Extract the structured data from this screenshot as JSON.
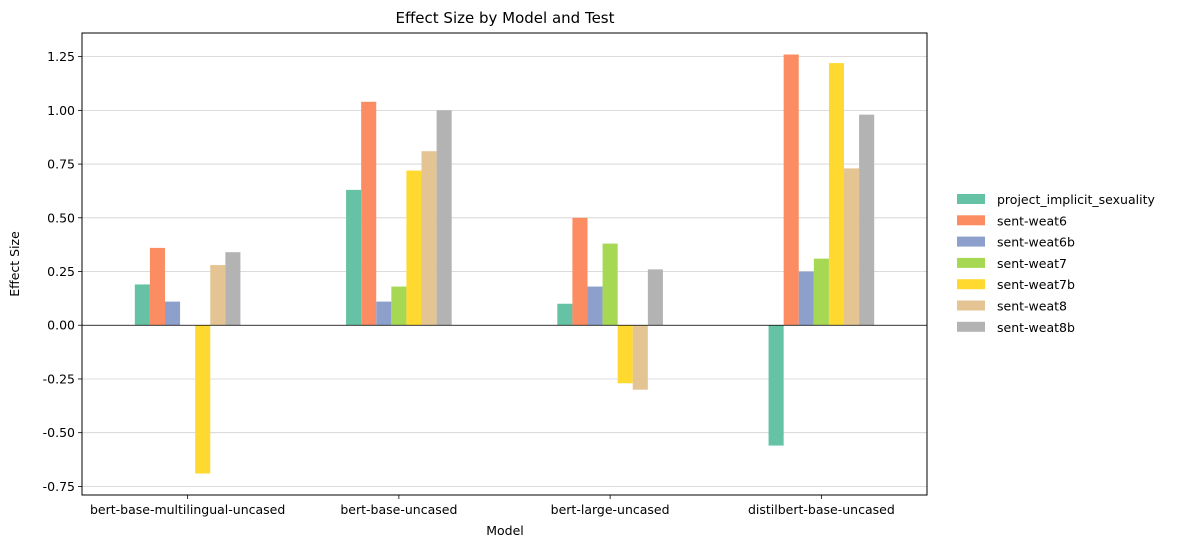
{
  "chart_data": {
    "type": "bar",
    "title": "Effect Size by Model and Test",
    "xlabel": "Model",
    "ylabel": "Effect Size",
    "ylim": [
      -0.79,
      1.36
    ],
    "yticks": [
      "-0.75",
      "-0.50",
      "-0.25",
      "0.00",
      "0.25",
      "0.50",
      "0.75",
      "1.00",
      "1.25"
    ],
    "grid": "horizontal",
    "legend_position": "right",
    "categories": [
      "bert-base-multilingual-uncased",
      "bert-base-uncased",
      "bert-large-uncased",
      "distilbert-base-uncased"
    ],
    "series": [
      {
        "name": "project_implicit_sexuality",
        "color": "#66c2a5",
        "values": [
          0.19,
          0.63,
          0.1,
          -0.56
        ]
      },
      {
        "name": "sent-weat6",
        "color": "#fc8d62",
        "values": [
          0.36,
          1.04,
          0.5,
          1.26
        ]
      },
      {
        "name": "sent-weat6b",
        "color": "#8da0cb",
        "values": [
          0.11,
          0.11,
          0.18,
          0.25
        ]
      },
      {
        "name": "sent-weat7",
        "color": "#a6d854",
        "values": [
          0.0,
          0.18,
          0.38,
          0.31
        ]
      },
      {
        "name": "sent-weat7b",
        "color": "#ffd92f",
        "values": [
          -0.69,
          0.72,
          -0.27,
          1.22
        ]
      },
      {
        "name": "sent-weat8",
        "color": "#e5c494",
        "values": [
          0.28,
          0.81,
          -0.3,
          0.73
        ]
      },
      {
        "name": "sent-weat8b",
        "color": "#b3b3b3",
        "values": [
          0.34,
          1.0,
          0.26,
          0.98
        ]
      }
    ]
  }
}
